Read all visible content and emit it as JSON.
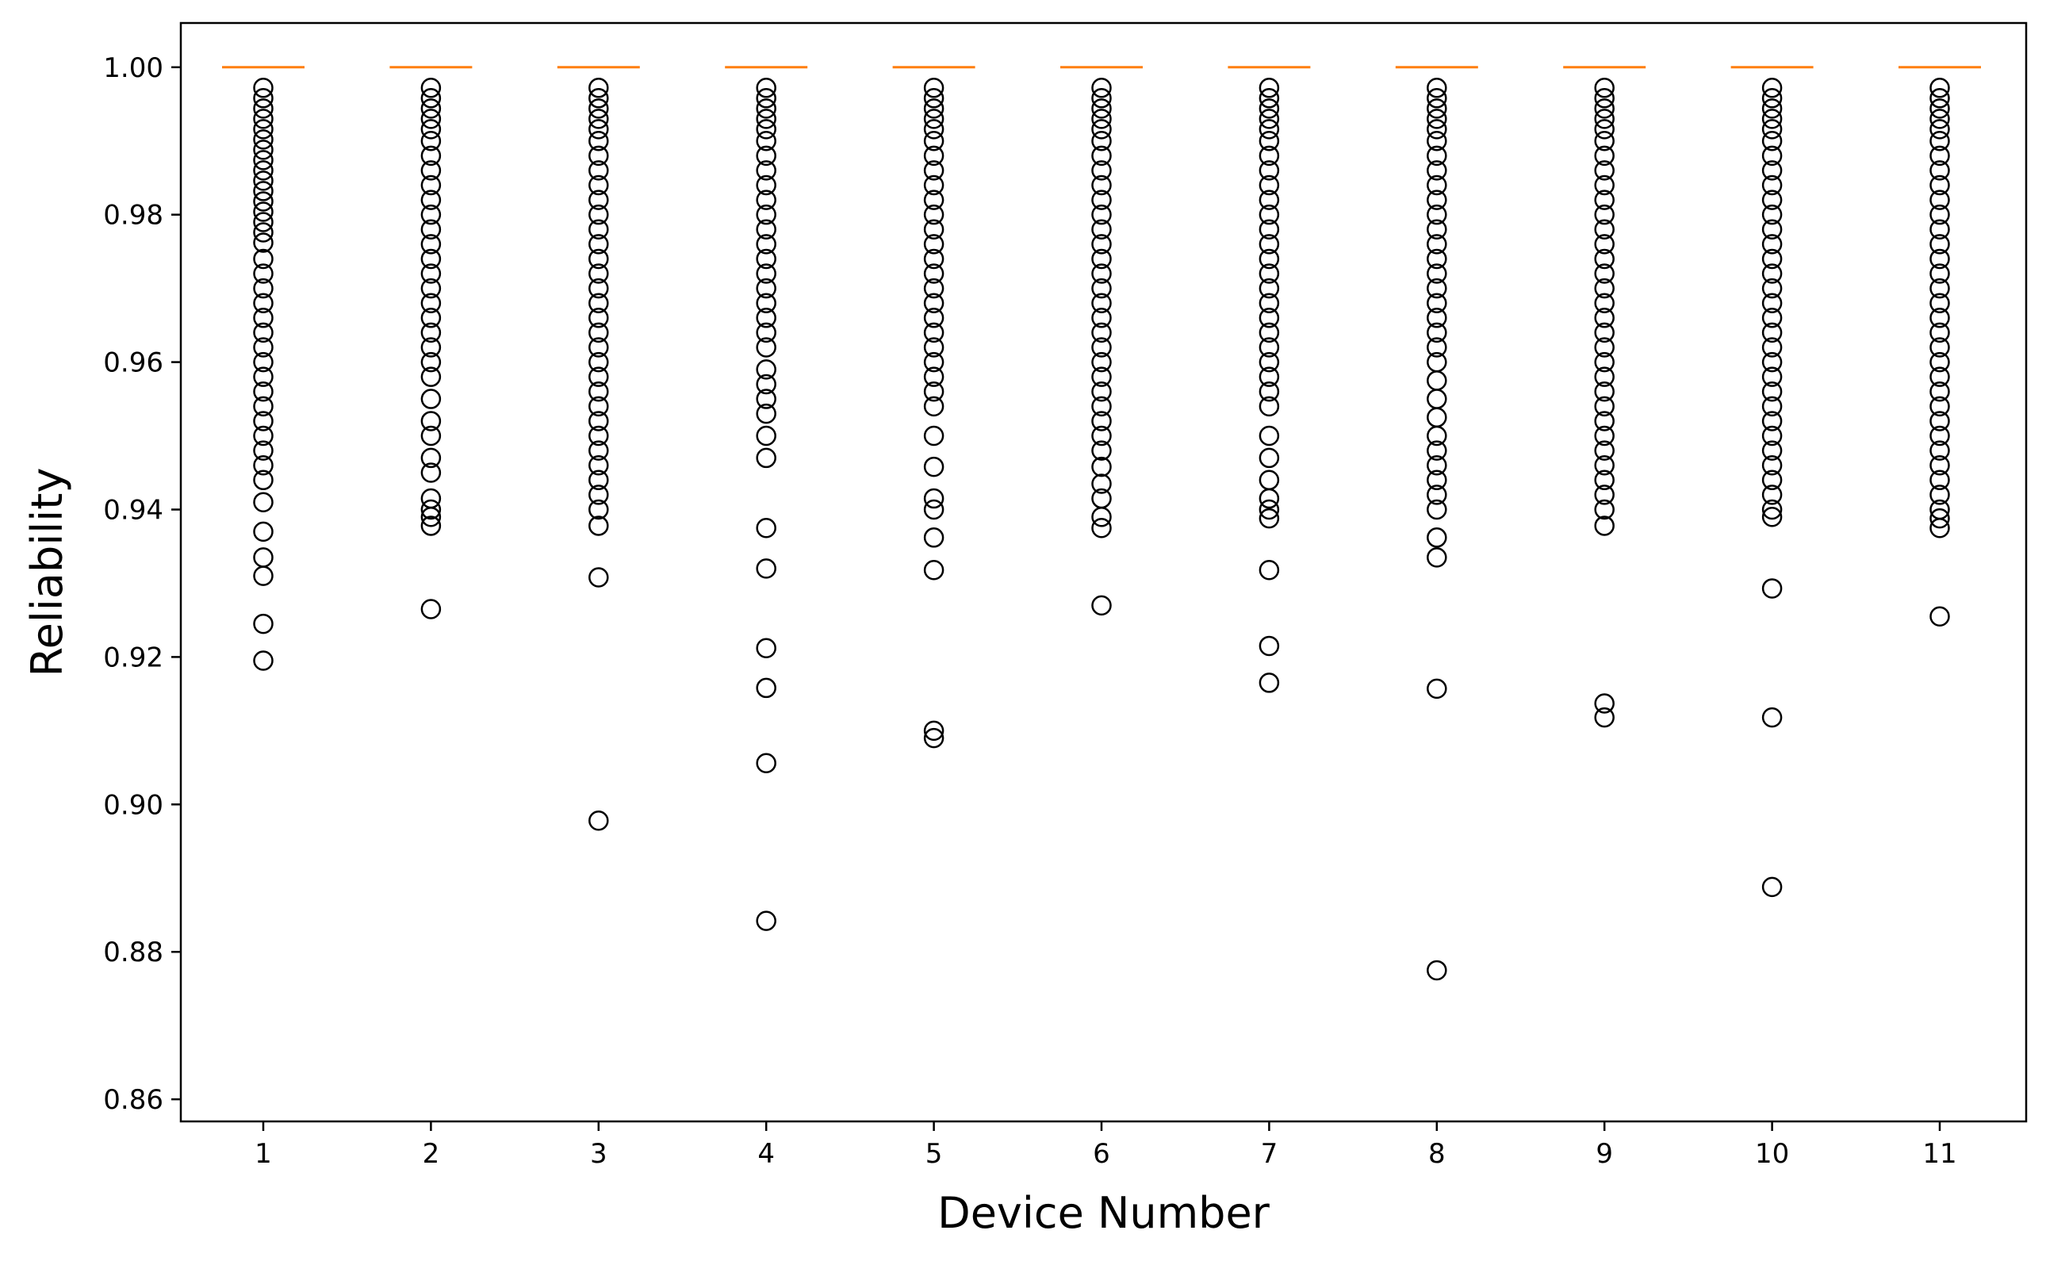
{
  "chart_data": {
    "type": "box",
    "title": "",
    "xlabel": "Device Number",
    "ylabel": "Reliability",
    "ylim": [
      0.857,
      1.006
    ],
    "yticks": [
      "0.86",
      "0.88",
      "0.90",
      "0.92",
      "0.94",
      "0.96",
      "0.98",
      "1.00"
    ],
    "categories": [
      "1",
      "2",
      "3",
      "4",
      "5",
      "6",
      "7",
      "8",
      "9",
      "10",
      "11"
    ],
    "grid": false,
    "legend": "none",
    "colors": {
      "median": "#ff7f0e",
      "outlier": "#000000",
      "axes": "#000000"
    },
    "median": [
      1.0,
      1.0,
      1.0,
      1.0,
      1.0,
      1.0,
      1.0,
      1.0,
      1.0,
      1.0,
      1.0
    ],
    "outliers": [
      [
        0.9972,
        0.9958,
        0.9944,
        0.993,
        0.9916,
        0.9902,
        0.9888,
        0.9874,
        0.986,
        0.9846,
        0.9832,
        0.9818,
        0.9804,
        0.979,
        0.9776,
        0.9762,
        0.974,
        0.972,
        0.97,
        0.968,
        0.966,
        0.964,
        0.962,
        0.96,
        0.958,
        0.956,
        0.954,
        0.952,
        0.95,
        0.948,
        0.946,
        0.944,
        0.941,
        0.937,
        0.9335,
        0.931,
        0.9245,
        0.9195
      ],
      [
        0.9972,
        0.9958,
        0.9944,
        0.993,
        0.9916,
        0.99,
        0.988,
        0.986,
        0.984,
        0.982,
        0.98,
        0.978,
        0.976,
        0.974,
        0.972,
        0.97,
        0.968,
        0.966,
        0.964,
        0.962,
        0.96,
        0.958,
        0.955,
        0.952,
        0.95,
        0.947,
        0.945,
        0.9415,
        0.94,
        0.939,
        0.9378,
        0.9265
      ],
      [
        0.9972,
        0.9958,
        0.9944,
        0.993,
        0.9916,
        0.99,
        0.988,
        0.986,
        0.984,
        0.982,
        0.98,
        0.978,
        0.976,
        0.974,
        0.972,
        0.97,
        0.968,
        0.966,
        0.964,
        0.962,
        0.96,
        0.958,
        0.956,
        0.954,
        0.952,
        0.95,
        0.948,
        0.946,
        0.944,
        0.942,
        0.94,
        0.9378,
        0.9308,
        0.8978
      ],
      [
        0.9972,
        0.9958,
        0.9944,
        0.993,
        0.9916,
        0.99,
        0.988,
        0.986,
        0.984,
        0.982,
        0.98,
        0.978,
        0.976,
        0.974,
        0.972,
        0.97,
        0.968,
        0.966,
        0.964,
        0.962,
        0.959,
        0.957,
        0.955,
        0.953,
        0.95,
        0.947,
        0.9375,
        0.932,
        0.9212,
        0.9158,
        0.9056,
        0.8842
      ],
      [
        0.9972,
        0.9958,
        0.9944,
        0.993,
        0.9916,
        0.99,
        0.988,
        0.986,
        0.984,
        0.982,
        0.98,
        0.978,
        0.976,
        0.974,
        0.972,
        0.97,
        0.968,
        0.966,
        0.964,
        0.962,
        0.96,
        0.958,
        0.956,
        0.954,
        0.95,
        0.9458,
        0.9415,
        0.94,
        0.9362,
        0.9318,
        0.91,
        0.909
      ],
      [
        0.9972,
        0.9958,
        0.9944,
        0.993,
        0.9916,
        0.99,
        0.988,
        0.986,
        0.984,
        0.982,
        0.98,
        0.978,
        0.976,
        0.974,
        0.972,
        0.97,
        0.968,
        0.966,
        0.964,
        0.962,
        0.96,
        0.958,
        0.956,
        0.954,
        0.952,
        0.95,
        0.948,
        0.9458,
        0.9435,
        0.9415,
        0.939,
        0.9375,
        0.927
      ],
      [
        0.9972,
        0.9958,
        0.9944,
        0.993,
        0.9916,
        0.99,
        0.988,
        0.986,
        0.984,
        0.982,
        0.98,
        0.978,
        0.976,
        0.974,
        0.972,
        0.97,
        0.968,
        0.966,
        0.964,
        0.962,
        0.96,
        0.958,
        0.956,
        0.954,
        0.95,
        0.947,
        0.944,
        0.9415,
        0.94,
        0.9388,
        0.9318,
        0.9215,
        0.9165
      ],
      [
        0.9972,
        0.9958,
        0.9944,
        0.993,
        0.9916,
        0.99,
        0.988,
        0.986,
        0.984,
        0.982,
        0.98,
        0.978,
        0.976,
        0.974,
        0.972,
        0.97,
        0.968,
        0.966,
        0.964,
        0.962,
        0.96,
        0.9575,
        0.955,
        0.9525,
        0.95,
        0.948,
        0.946,
        0.944,
        0.942,
        0.94,
        0.9362,
        0.9335,
        0.9157,
        0.8775
      ],
      [
        0.9972,
        0.9958,
        0.9944,
        0.993,
        0.9916,
        0.99,
        0.988,
        0.986,
        0.984,
        0.982,
        0.98,
        0.978,
        0.976,
        0.974,
        0.972,
        0.97,
        0.968,
        0.966,
        0.964,
        0.962,
        0.96,
        0.958,
        0.956,
        0.954,
        0.952,
        0.95,
        0.948,
        0.946,
        0.944,
        0.942,
        0.94,
        0.9378,
        0.9137,
        0.9118
      ],
      [
        0.9972,
        0.9958,
        0.9944,
        0.993,
        0.9916,
        0.99,
        0.988,
        0.986,
        0.984,
        0.982,
        0.98,
        0.978,
        0.976,
        0.974,
        0.972,
        0.97,
        0.968,
        0.966,
        0.964,
        0.962,
        0.96,
        0.958,
        0.956,
        0.954,
        0.952,
        0.95,
        0.948,
        0.946,
        0.944,
        0.942,
        0.94,
        0.939,
        0.9293,
        0.9118,
        0.8888
      ],
      [
        0.9972,
        0.9958,
        0.9944,
        0.993,
        0.9916,
        0.99,
        0.988,
        0.986,
        0.984,
        0.982,
        0.98,
        0.978,
        0.976,
        0.974,
        0.972,
        0.97,
        0.968,
        0.966,
        0.964,
        0.962,
        0.96,
        0.958,
        0.956,
        0.954,
        0.952,
        0.95,
        0.948,
        0.946,
        0.944,
        0.942,
        0.94,
        0.9388,
        0.9375,
        0.9255
      ]
    ]
  }
}
